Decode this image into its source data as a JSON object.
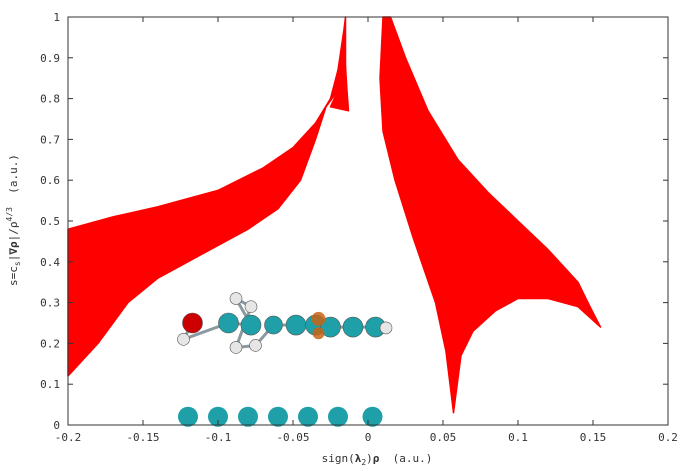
{
  "chart_data": {
    "type": "scatter",
    "title": "",
    "xlabel_parts": {
      "pre": "sign(",
      "bold": "λ",
      "sub": "2",
      "post": ")",
      "rho": "ρ",
      "unit": "  (a.u.)"
    },
    "ylabel_parts": {
      "s": "s=c",
      "sub_s": "s",
      "pre_grad": "|",
      "grad": "∇ρ",
      "post_grad": "|/ρ",
      "exp": "4/3",
      "unit": "  (a.u.)"
    },
    "xlim": [
      -0.2,
      0.2
    ],
    "ylim": [
      0,
      1
    ],
    "x_ticks": [
      "-0.2",
      "-0.15",
      "-0.1",
      "-0.05",
      "0",
      "0.05",
      "0.1",
      "0.15",
      "0.2"
    ],
    "y_ticks": [
      "0",
      "0.1",
      "0.2",
      "0.3",
      "0.4",
      "0.5",
      "0.6",
      "0.7",
      "0.8",
      "0.9",
      "1"
    ],
    "grid": false,
    "series": [
      {
        "color": "#ff0000",
        "regions": [
          {
            "upper": [
              [
                -0.2,
                0.48
              ],
              [
                -0.17,
                0.51
              ],
              [
                -0.14,
                0.535
              ],
              [
                -0.1,
                0.575
              ],
              [
                -0.07,
                0.63
              ],
              [
                -0.05,
                0.68
              ],
              [
                -0.035,
                0.74
              ],
              [
                -0.025,
                0.8
              ],
              [
                -0.02,
                0.87
              ],
              [
                -0.018,
                0.92
              ],
              [
                -0.016,
                0.97
              ],
              [
                -0.015,
                1.0
              ]
            ],
            "lower": [
              [
                -0.2,
                0.12
              ],
              [
                -0.18,
                0.2
              ],
              [
                -0.16,
                0.3
              ],
              [
                -0.14,
                0.36
              ],
              [
                -0.11,
                0.42
              ],
              [
                -0.08,
                0.48
              ],
              [
                -0.06,
                0.53
              ],
              [
                -0.045,
                0.6
              ],
              [
                -0.035,
                0.7
              ],
              [
                -0.028,
                0.78
              ],
              [
                -0.02,
                0.82
              ],
              [
                -0.015,
                0.84
              ],
              [
                -0.015,
                1.0
              ]
            ]
          },
          {
            "upper": [
              [
                -0.013,
                0.77
              ],
              [
                -0.014,
                0.82
              ],
              [
                -0.015,
                0.88
              ],
              [
                -0.017,
                0.85
              ],
              [
                -0.02,
                0.82
              ],
              [
                -0.025,
                0.78
              ]
            ],
            "lower": [
              [
                -0.013,
                0.77
              ],
              [
                -0.025,
                0.78
              ]
            ]
          },
          {
            "upper": [
              [
                0.01,
                1.0
              ],
              [
                0.015,
                1.0
              ],
              [
                0.018,
                0.97
              ],
              [
                0.025,
                0.9
              ],
              [
                0.04,
                0.77
              ],
              [
                0.06,
                0.65
              ],
              [
                0.08,
                0.57
              ],
              [
                0.1,
                0.5
              ],
              [
                0.12,
                0.43
              ],
              [
                0.14,
                0.35
              ],
              [
                0.148,
                0.29
              ],
              [
                0.155,
                0.24
              ]
            ],
            "lower": [
              [
                0.01,
                1.0
              ],
              [
                0.008,
                0.85
              ],
              [
                0.01,
                0.72
              ],
              [
                0.018,
                0.6
              ],
              [
                0.03,
                0.46
              ],
              [
                0.045,
                0.3
              ],
              [
                0.052,
                0.18
              ],
              [
                0.057,
                0.03
              ],
              [
                0.062,
                0.17
              ],
              [
                0.07,
                0.23
              ],
              [
                0.085,
                0.28
              ],
              [
                0.1,
                0.31
              ],
              [
                0.12,
                0.31
              ],
              [
                0.14,
                0.29
              ],
              [
                0.155,
                0.24
              ]
            ]
          }
        ]
      }
    ],
    "molecule": {
      "atoms": [
        {
          "x": -0.117,
          "y": 0.25,
          "color": "#cc0000",
          "r": 10
        },
        {
          "x": -0.123,
          "y": 0.21,
          "color": "#e6e6e6",
          "r": 6
        },
        {
          "x": -0.093,
          "y": 0.25,
          "color": "#1fa0a8",
          "r": 10
        },
        {
          "x": -0.078,
          "y": 0.245,
          "color": "#1fa0a8",
          "r": 10
        },
        {
          "x": -0.088,
          "y": 0.31,
          "color": "#e6e6e6",
          "r": 6
        },
        {
          "x": -0.078,
          "y": 0.29,
          "color": "#e6e6e6",
          "r": 6
        },
        {
          "x": -0.088,
          "y": 0.19,
          "color": "#e6e6e6",
          "r": 6
        },
        {
          "x": -0.075,
          "y": 0.195,
          "color": "#e6e6e6",
          "r": 6
        },
        {
          "x": -0.063,
          "y": 0.245,
          "color": "#1fa0a8",
          "r": 9
        },
        {
          "x": -0.048,
          "y": 0.245,
          "color": "#1fa0a8",
          "r": 10
        },
        {
          "x": -0.035,
          "y": 0.245,
          "color": "#1fa0a8",
          "r": 10
        },
        {
          "x": -0.025,
          "y": 0.24,
          "color": "#1fa0a8",
          "r": 10
        },
        {
          "x": -0.01,
          "y": 0.24,
          "color": "#1fa0a8",
          "r": 10
        },
        {
          "x": 0.005,
          "y": 0.24,
          "color": "#1fa0a8",
          "r": 10
        },
        {
          "x": 0.012,
          "y": 0.238,
          "color": "#e6e6e6",
          "r": 6
        }
      ],
      "density_blobs": [
        {
          "x": -0.033,
          "y": 0.26,
          "color": "#c86414",
          "r": 7
        },
        {
          "x": -0.033,
          "y": 0.225,
          "color": "#c86414",
          "r": 6
        }
      ]
    },
    "atom_row": {
      "y": 0.035,
      "x": [
        -0.12,
        -0.1,
        -0.08,
        -0.06,
        -0.04,
        -0.02,
        0.003
      ],
      "color": "#1fa0a8"
    }
  }
}
